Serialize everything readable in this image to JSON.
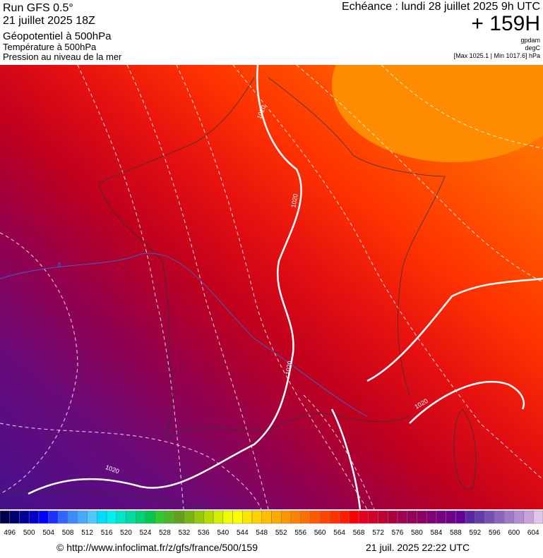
{
  "header": {
    "run": "Run GFS 0.5°",
    "run_date": "21 juillet 2025 18Z",
    "fields": [
      "Géopotentiel à 500hPa",
      "Température à 500hPa",
      "Pression au niveau de la mer"
    ],
    "forecast": "Echéance : lundi 28 juillet 2025 9h UTC",
    "lead": "+ 159H",
    "units": [
      "gpdam",
      "degC",
      "[Max 1025.1 | Min 1017.6] hPa"
    ]
  },
  "map": {
    "isobar_labels": [
      "1020",
      "1020",
      "1020",
      "1020",
      "1020"
    ],
    "temperature_labels": [
      "8"
    ]
  },
  "legend": {
    "labels": [
      496,
      500,
      504,
      508,
      512,
      516,
      520,
      524,
      528,
      532,
      536,
      540,
      544,
      548,
      552,
      556,
      560,
      564,
      568,
      572,
      576,
      580,
      584,
      588,
      592,
      596,
      600,
      604
    ],
    "colors": [
      "#00004a",
      "#000070",
      "#000096",
      "#0000c8",
      "#0000ff",
      "#1e32ff",
      "#3264ff",
      "#3c8cff",
      "#46aaff",
      "#50c8ff",
      "#00dcff",
      "#00f0f0",
      "#00e6c8",
      "#00dca0",
      "#00d278",
      "#00c850",
      "#32c832",
      "#50b428",
      "#64a01e",
      "#78b414",
      "#96c80a",
      "#b4dc00",
      "#d2f000",
      "#f0ff00",
      "#ffff00",
      "#ffe600",
      "#ffd200",
      "#ffbe00",
      "#ffaa00",
      "#ff9600",
      "#ff8200",
      "#ff6e00",
      "#ff5a00",
      "#ff4600",
      "#ff3200",
      "#ff1e00",
      "#ff0000",
      "#e6001e",
      "#d20028",
      "#be0032",
      "#aa003c",
      "#a00050",
      "#96005a",
      "#8c0064",
      "#820078",
      "#780082",
      "#6e008c",
      "#640096",
      "#5a28a0",
      "#643caa",
      "#7850b4",
      "#8c64be",
      "#a078c8",
      "#b48cd2",
      "#c8a0dc",
      "#dcc8e6"
    ]
  },
  "footer": {
    "source": "© http://www.infoclimat.fr/z/gfs/france/500/159",
    "generated": "21 juil. 2025 22:22 UTC"
  }
}
